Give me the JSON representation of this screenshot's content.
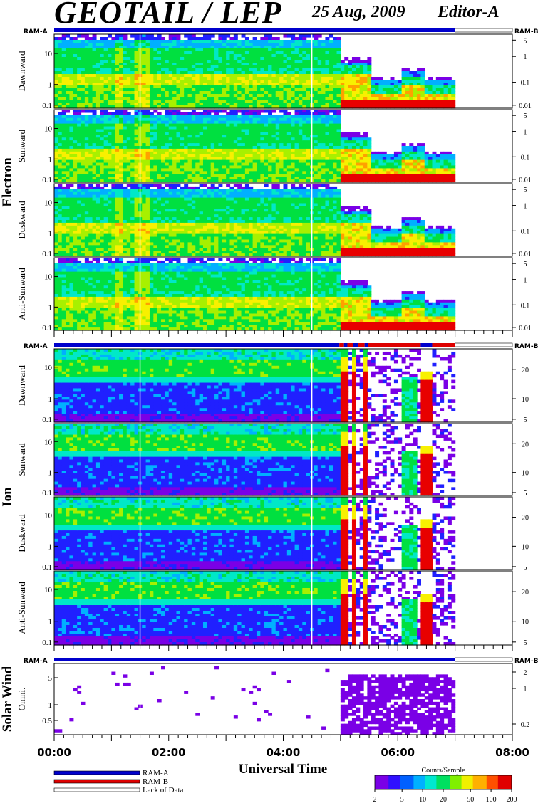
{
  "header": {
    "instrument": "GEOTAIL / LEP",
    "date": "25 Aug, 2009",
    "editor": "Editor-A"
  },
  "colors": {
    "ram_a": "#0000cc",
    "ram_b": "#dd0000",
    "lack_of_data": "#ffffff",
    "spectrogram_palette": [
      "#7a00e6",
      "#2020ff",
      "#00b0ff",
      "#00e8c8",
      "#00e040",
      "#a8f000",
      "#f8f000",
      "#ffa000",
      "#ff4000",
      "#e80000"
    ]
  },
  "chart_data": {
    "type": "heatmap",
    "xlabel": "Universal Time",
    "x_ticks": [
      "00:00",
      "02:00",
      "04:00",
      "06:00",
      "08:00"
    ],
    "xlim_hours": [
      0,
      8
    ],
    "data_end_hour": 7.0,
    "transition_hour": 4.95,
    "mode_bar_label_left": "RAM-A",
    "mode_bar_label_right": "RAM-B",
    "groups": [
      {
        "name": "Electron",
        "y_ticks_left": [
          "10",
          "1",
          "0.1"
        ],
        "y_ticks_right": [
          "5",
          "1",
          "0.1",
          "0.01"
        ],
        "mode_segments": [
          {
            "start": 0,
            "end": 7.0,
            "mode": "ram_a"
          },
          {
            "start": 7.0,
            "end": 8,
            "mode": "lack"
          }
        ],
        "panels": [
          {
            "label": "Dawnward",
            "style": "electron"
          },
          {
            "label": "Sunward",
            "style": "electron"
          },
          {
            "label": "Duskward",
            "style": "electron"
          },
          {
            "label": "Anti-Sunward",
            "style": "electron"
          }
        ]
      },
      {
        "name": "Ion",
        "y_ticks_left": [
          "10",
          "1",
          "0.1"
        ],
        "y_ticks_right": [
          "20",
          "10",
          "5"
        ],
        "mode_segments": [
          {
            "start": 0,
            "end": 4.98,
            "mode": "ram_a"
          },
          {
            "start": 4.98,
            "end": 5.06,
            "mode": "ram_b"
          },
          {
            "start": 5.06,
            "end": 5.12,
            "mode": "ram_a"
          },
          {
            "start": 5.12,
            "end": 5.22,
            "mode": "ram_b"
          },
          {
            "start": 5.22,
            "end": 5.3,
            "mode": "ram_a"
          },
          {
            "start": 5.3,
            "end": 5.42,
            "mode": "ram_b"
          },
          {
            "start": 5.42,
            "end": 5.48,
            "mode": "ram_a"
          },
          {
            "start": 5.48,
            "end": 6.4,
            "mode": "ram_b"
          },
          {
            "start": 6.4,
            "end": 6.6,
            "mode": "ram_a"
          },
          {
            "start": 6.6,
            "end": 7.0,
            "mode": "ram_b"
          },
          {
            "start": 7.0,
            "end": 8,
            "mode": "lack"
          }
        ],
        "panels": [
          {
            "label": "Dawnward",
            "style": "ion"
          },
          {
            "label": "Sunward",
            "style": "ion"
          },
          {
            "label": "Duskward",
            "style": "ion"
          },
          {
            "label": "Anti-Sunward",
            "style": "ion"
          }
        ]
      },
      {
        "name": "Solar Wind",
        "y_ticks_left": [
          "5",
          "1",
          "0.5"
        ],
        "y_ticks_right": [
          "2",
          "1",
          "0.2"
        ],
        "mode_segments": [
          {
            "start": 0,
            "end": 7.0,
            "mode": "ram_a"
          },
          {
            "start": 7.0,
            "end": 8,
            "mode": "lack"
          }
        ],
        "panels": [
          {
            "label": "Omni.",
            "style": "solar"
          }
        ]
      }
    ],
    "legend": {
      "items": [
        {
          "label": "RAM-A",
          "color": "#0000cc"
        },
        {
          "label": "RAM-B",
          "color": "#dd0000"
        },
        {
          "label": "Lack of Data",
          "color": "#ffffff"
        }
      ]
    },
    "colorbar": {
      "title": "Counts/Sample",
      "ticks": [
        "2",
        "5",
        "10",
        "20",
        "50",
        "100",
        "200"
      ],
      "range": [
        2,
        200
      ],
      "scale": "log"
    }
  }
}
